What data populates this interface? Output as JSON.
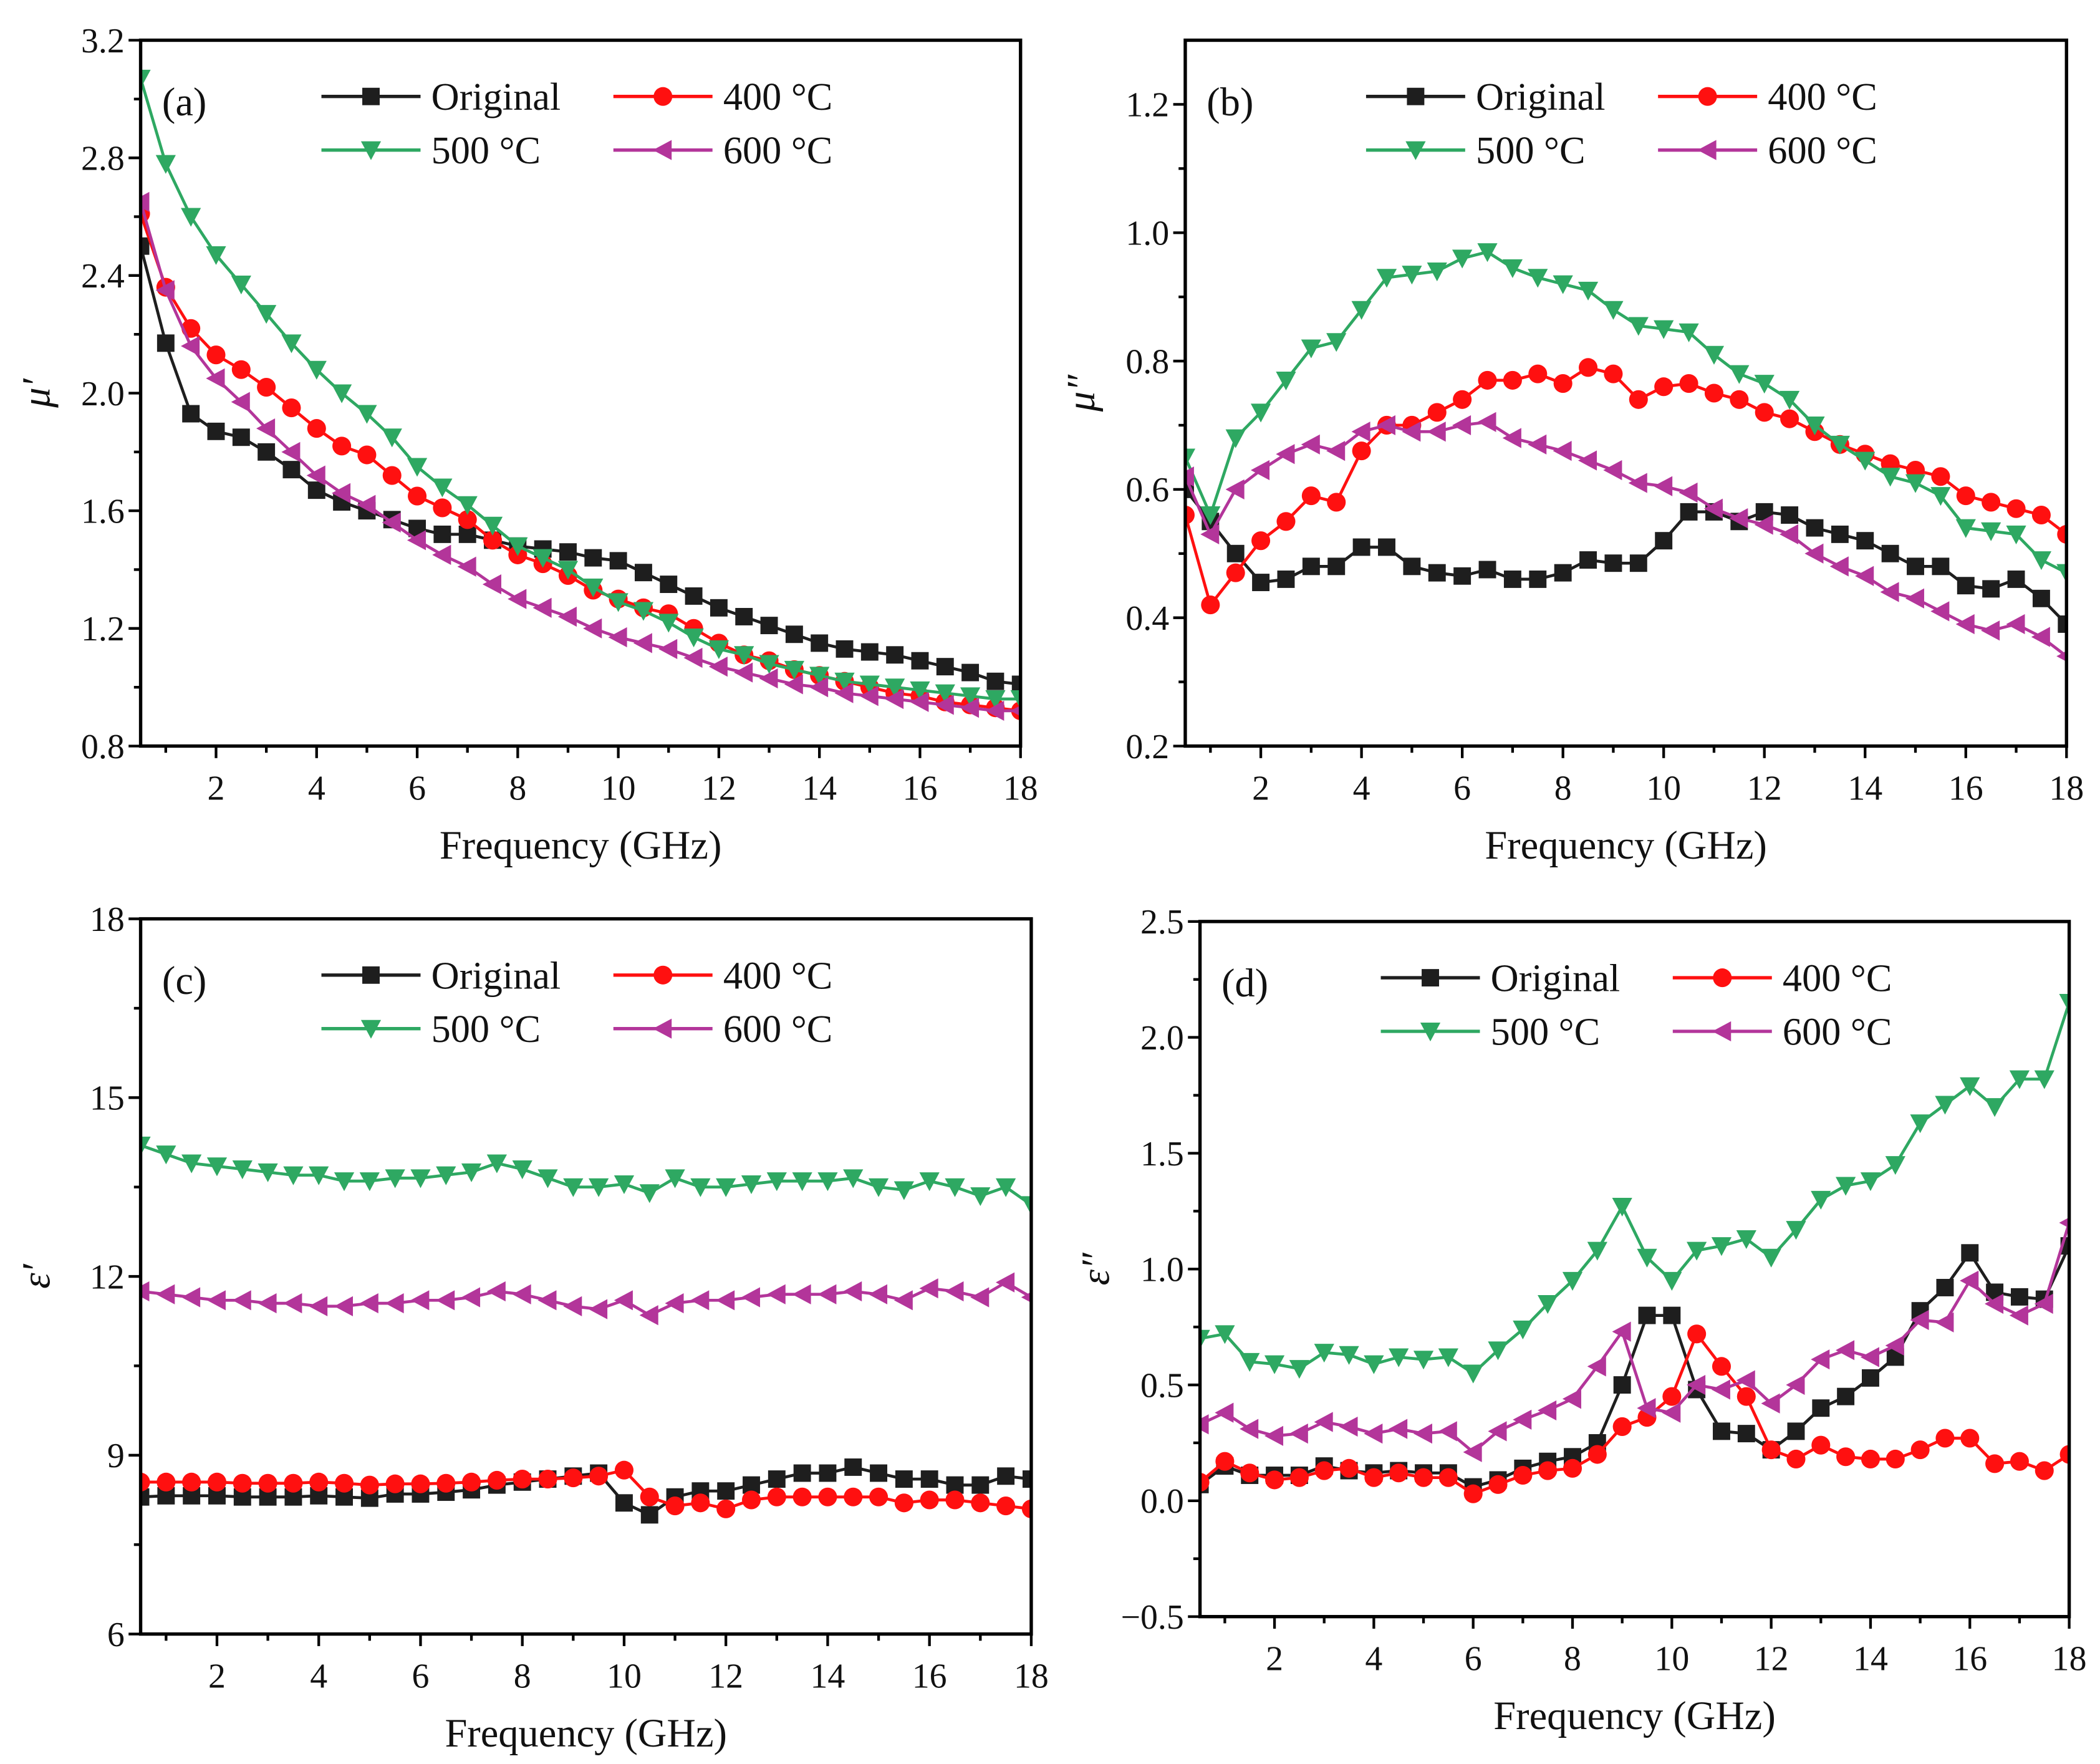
{
  "colors": {
    "Original": "#1e1e1e",
    "400 °C": "#ff1010",
    "500 °C": "#2ea862",
    "600 °C": "#b3359a"
  },
  "chart_data": [
    {
      "type": "line",
      "panel_label": "(a)",
      "xlabel": "Frequency (GHz)",
      "ylabel": "μ′",
      "xlim": [
        0.5,
        18
      ],
      "ylim": [
        0.8,
        3.2
      ],
      "xticks": [
        2,
        4,
        6,
        8,
        10,
        12,
        14,
        16,
        18
      ],
      "xtick_labels": [
        "2",
        "4",
        "6",
        "8",
        "10",
        "12",
        "14",
        "16",
        "18"
      ],
      "yticks": [
        0.8,
        1.2,
        1.6,
        2.0,
        2.4,
        2.8,
        3.2
      ],
      "ytick_labels": [
        "0.8",
        "1.2",
        "1.6",
        "2.0",
        "2.4",
        "2.8",
        "3.2"
      ],
      "legend_position": "top",
      "x": [
        0.5,
        1,
        1.5,
        2,
        2.5,
        3,
        3.5,
        4,
        4.5,
        5,
        5.5,
        6,
        6.5,
        7,
        7.5,
        8,
        8.5,
        9,
        9.5,
        10,
        10.5,
        11,
        11.5,
        12,
        12.5,
        13,
        13.5,
        14,
        14.5,
        15,
        15.5,
        16,
        16.5,
        17,
        17.5,
        18
      ],
      "series": [
        {
          "name": "Original",
          "marker": "square",
          "values": [
            2.5,
            2.17,
            1.93,
            1.87,
            1.85,
            1.8,
            1.74,
            1.67,
            1.63,
            1.6,
            1.57,
            1.54,
            1.52,
            1.52,
            1.5,
            1.48,
            1.47,
            1.46,
            1.44,
            1.43,
            1.39,
            1.35,
            1.31,
            1.27,
            1.24,
            1.21,
            1.18,
            1.15,
            1.13,
            1.12,
            1.11,
            1.09,
            1.07,
            1.05,
            1.02,
            1.01
          ]
        },
        {
          "name": "400 °C",
          "marker": "circle",
          "values": [
            2.61,
            2.36,
            2.22,
            2.13,
            2.08,
            2.02,
            1.95,
            1.88,
            1.82,
            1.79,
            1.72,
            1.65,
            1.61,
            1.57,
            1.5,
            1.45,
            1.42,
            1.38,
            1.33,
            1.3,
            1.27,
            1.25,
            1.2,
            1.15,
            1.11,
            1.09,
            1.06,
            1.04,
            1.02,
            1.0,
            0.98,
            0.97,
            0.95,
            0.94,
            0.93,
            0.92
          ]
        },
        {
          "name": "500 °C",
          "marker": "triangle-down",
          "values": [
            3.07,
            2.78,
            2.6,
            2.47,
            2.37,
            2.27,
            2.17,
            2.08,
            2.0,
            1.93,
            1.85,
            1.75,
            1.68,
            1.62,
            1.55,
            1.48,
            1.44,
            1.4,
            1.34,
            1.29,
            1.26,
            1.22,
            1.17,
            1.13,
            1.11,
            1.08,
            1.06,
            1.04,
            1.02,
            1.01,
            1.0,
            0.99,
            0.98,
            0.97,
            0.96,
            0.96
          ]
        },
        {
          "name": "600 °C",
          "marker": "triangle-left",
          "values": [
            2.65,
            2.35,
            2.16,
            2.05,
            1.97,
            1.88,
            1.8,
            1.72,
            1.66,
            1.62,
            1.56,
            1.5,
            1.45,
            1.41,
            1.35,
            1.3,
            1.27,
            1.24,
            1.2,
            1.17,
            1.15,
            1.13,
            1.1,
            1.07,
            1.05,
            1.03,
            1.01,
            1.0,
            0.98,
            0.97,
            0.96,
            0.95,
            0.94,
            0.93,
            0.92,
            0.92
          ]
        }
      ]
    },
    {
      "type": "line",
      "panel_label": "(b)",
      "xlabel": "Frequency (GHz)",
      "ylabel": "μ″",
      "xlim": [
        0.5,
        18
      ],
      "ylim": [
        0.2,
        1.3
      ],
      "xticks": [
        2,
        4,
        6,
        8,
        10,
        12,
        14,
        16,
        18
      ],
      "xtick_labels": [
        "2",
        "4",
        "6",
        "8",
        "10",
        "12",
        "14",
        "16",
        "18"
      ],
      "yticks": [
        0.2,
        0.4,
        0.6,
        0.8,
        1.0,
        1.2
      ],
      "ytick_labels": [
        "0.2",
        "0.4",
        "0.6",
        "0.8",
        "1.0",
        "1.2"
      ],
      "legend_position": "top",
      "x": [
        0.5,
        1,
        1.5,
        2,
        2.5,
        3,
        3.5,
        4,
        4.5,
        5,
        5.5,
        6,
        6.5,
        7,
        7.5,
        8,
        8.5,
        9,
        9.5,
        10,
        10.5,
        11,
        11.5,
        12,
        12.5,
        13,
        13.5,
        14,
        14.5,
        15,
        15.5,
        16,
        16.5,
        17,
        17.5,
        18
      ],
      "series": [
        {
          "name": "Original",
          "marker": "square",
          "values": [
            0.6,
            0.55,
            0.5,
            0.455,
            0.46,
            0.48,
            0.48,
            0.51,
            0.51,
            0.48,
            0.47,
            0.465,
            0.475,
            0.46,
            0.46,
            0.47,
            0.49,
            0.485,
            0.485,
            0.52,
            0.565,
            0.565,
            0.55,
            0.565,
            0.56,
            0.54,
            0.53,
            0.52,
            0.5,
            0.48,
            0.48,
            0.45,
            0.445,
            0.46,
            0.43,
            0.39
          ]
        },
        {
          "name": "400 °C",
          "marker": "circle",
          "values": [
            0.56,
            0.42,
            0.47,
            0.52,
            0.55,
            0.59,
            0.58,
            0.66,
            0.7,
            0.7,
            0.72,
            0.74,
            0.77,
            0.77,
            0.78,
            0.765,
            0.79,
            0.78,
            0.74,
            0.76,
            0.765,
            0.75,
            0.74,
            0.72,
            0.71,
            0.69,
            0.67,
            0.655,
            0.64,
            0.63,
            0.62,
            0.59,
            0.58,
            0.57,
            0.56,
            0.53
          ]
        },
        {
          "name": "500 °C",
          "marker": "triangle-down",
          "values": [
            0.65,
            0.56,
            0.68,
            0.72,
            0.77,
            0.82,
            0.83,
            0.88,
            0.93,
            0.935,
            0.94,
            0.96,
            0.97,
            0.945,
            0.93,
            0.92,
            0.91,
            0.88,
            0.855,
            0.85,
            0.845,
            0.81,
            0.78,
            0.765,
            0.74,
            0.7,
            0.67,
            0.645,
            0.62,
            0.61,
            0.59,
            0.54,
            0.535,
            0.53,
            0.49,
            0.47
          ]
        },
        {
          "name": "600 °C",
          "marker": "triangle-left",
          "values": [
            0.62,
            0.53,
            0.6,
            0.63,
            0.655,
            0.67,
            0.66,
            0.69,
            0.7,
            0.69,
            0.69,
            0.7,
            0.705,
            0.68,
            0.67,
            0.66,
            0.645,
            0.63,
            0.61,
            0.605,
            0.595,
            0.57,
            0.555,
            0.545,
            0.53,
            0.5,
            0.48,
            0.465,
            0.44,
            0.43,
            0.41,
            0.39,
            0.38,
            0.39,
            0.37,
            0.34
          ]
        }
      ]
    },
    {
      "type": "line",
      "panel_label": "(c)",
      "xlabel": "Frequency (GHz)",
      "ylabel": "ε′",
      "xlim": [
        0.5,
        18
      ],
      "ylim": [
        6,
        18
      ],
      "xticks": [
        2,
        4,
        6,
        8,
        10,
        12,
        14,
        16,
        18
      ],
      "xtick_labels": [
        "2",
        "4",
        "6",
        "8",
        "10",
        "12",
        "14",
        "16",
        "18"
      ],
      "yticks": [
        6,
        9,
        12,
        15,
        18
      ],
      "ytick_labels": [
        "6",
        "9",
        "12",
        "15",
        "18"
      ],
      "legend_position": "top",
      "x": [
        0.5,
        1,
        1.5,
        2,
        2.5,
        3,
        3.5,
        4,
        4.5,
        5,
        5.5,
        6,
        6.5,
        7,
        7.5,
        8,
        8.5,
        9,
        9.5,
        10,
        10.5,
        11,
        11.5,
        12,
        12.5,
        13,
        13.5,
        14,
        14.5,
        15,
        15.5,
        16,
        16.5,
        17,
        17.5,
        18
      ],
      "series": [
        {
          "name": "Original",
          "marker": "square",
          "values": [
            8.3,
            8.32,
            8.32,
            8.32,
            8.3,
            8.3,
            8.3,
            8.32,
            8.3,
            8.28,
            8.35,
            8.35,
            8.38,
            8.42,
            8.5,
            8.55,
            8.6,
            8.65,
            8.7,
            8.2,
            8.0,
            8.3,
            8.4,
            8.4,
            8.5,
            8.6,
            8.7,
            8.7,
            8.8,
            8.7,
            8.6,
            8.6,
            8.5,
            8.5,
            8.65,
            8.6
          ]
        },
        {
          "name": "400 °C",
          "marker": "circle",
          "values": [
            8.55,
            8.55,
            8.55,
            8.55,
            8.53,
            8.53,
            8.53,
            8.55,
            8.53,
            8.5,
            8.52,
            8.52,
            8.53,
            8.55,
            8.58,
            8.6,
            8.6,
            8.62,
            8.65,
            8.75,
            8.3,
            8.15,
            8.2,
            8.1,
            8.25,
            8.3,
            8.3,
            8.3,
            8.3,
            8.3,
            8.2,
            8.25,
            8.25,
            8.2,
            8.15,
            8.1
          ]
        },
        {
          "name": "500 °C",
          "marker": "triangle-down",
          "values": [
            14.2,
            14.05,
            13.9,
            13.85,
            13.8,
            13.75,
            13.7,
            13.7,
            13.6,
            13.6,
            13.65,
            13.65,
            13.7,
            13.75,
            13.9,
            13.8,
            13.65,
            13.5,
            13.5,
            13.55,
            13.4,
            13.65,
            13.5,
            13.5,
            13.55,
            13.6,
            13.6,
            13.6,
            13.65,
            13.5,
            13.45,
            13.6,
            13.5,
            13.35,
            13.5,
            13.2
          ]
        },
        {
          "name": "600 °C",
          "marker": "triangle-left",
          "values": [
            11.75,
            11.7,
            11.65,
            11.6,
            11.6,
            11.55,
            11.55,
            11.5,
            11.5,
            11.55,
            11.55,
            11.6,
            11.6,
            11.65,
            11.75,
            11.7,
            11.6,
            11.5,
            11.45,
            11.6,
            11.35,
            11.55,
            11.6,
            11.6,
            11.65,
            11.7,
            11.7,
            11.7,
            11.75,
            11.7,
            11.6,
            11.8,
            11.75,
            11.65,
            11.9,
            11.65
          ]
        }
      ]
    },
    {
      "type": "line",
      "panel_label": "(d)",
      "xlabel": "Frequency (GHz)",
      "ylabel": "ε″",
      "xlim": [
        0.5,
        18
      ],
      "ylim": [
        -0.5,
        2.5
      ],
      "xticks": [
        2,
        4,
        6,
        8,
        10,
        12,
        14,
        16,
        18
      ],
      "xtick_labels": [
        "2",
        "4",
        "6",
        "8",
        "10",
        "12",
        "14",
        "16",
        "18"
      ],
      "yticks": [
        -0.5,
        0.0,
        0.5,
        1.0,
        1.5,
        2.0,
        2.5
      ],
      "ytick_labels": [
        "−0.5",
        "0.0",
        "0.5",
        "1.0",
        "1.5",
        "2.0",
        "2.5"
      ],
      "legend_position": "top",
      "x": [
        0.5,
        1,
        1.5,
        2,
        2.5,
        3,
        3.5,
        4,
        4.5,
        5,
        5.5,
        6,
        6.5,
        7,
        7.5,
        8,
        8.5,
        9,
        9.5,
        10,
        10.5,
        11,
        11.5,
        12,
        12.5,
        13,
        13.5,
        14,
        14.5,
        15,
        15.5,
        16,
        16.5,
        17,
        17.5,
        18
      ],
      "series": [
        {
          "name": "Original",
          "marker": "square",
          "values": [
            0.07,
            0.15,
            0.11,
            0.11,
            0.11,
            0.15,
            0.13,
            0.12,
            0.13,
            0.12,
            0.12,
            0.06,
            0.09,
            0.14,
            0.17,
            0.19,
            0.25,
            0.5,
            0.8,
            0.8,
            0.48,
            0.3,
            0.29,
            0.22,
            0.3,
            0.4,
            0.45,
            0.53,
            0.62,
            0.82,
            0.92,
            1.07,
            0.9,
            0.88,
            0.87,
            1.1
          ]
        },
        {
          "name": "400 °C",
          "marker": "circle",
          "values": [
            0.08,
            0.17,
            0.12,
            0.09,
            0.1,
            0.13,
            0.14,
            0.1,
            0.12,
            0.1,
            0.1,
            0.03,
            0.07,
            0.11,
            0.13,
            0.14,
            0.2,
            0.32,
            0.36,
            0.45,
            0.72,
            0.58,
            0.45,
            0.22,
            0.18,
            0.24,
            0.19,
            0.18,
            0.18,
            0.22,
            0.27,
            0.27,
            0.16,
            0.17,
            0.13,
            0.2
          ]
        },
        {
          "name": "500 °C",
          "marker": "triangle-down",
          "values": [
            0.7,
            0.72,
            0.6,
            0.59,
            0.57,
            0.64,
            0.63,
            0.59,
            0.62,
            0.61,
            0.62,
            0.55,
            0.65,
            0.74,
            0.85,
            0.95,
            1.08,
            1.27,
            1.05,
            0.95,
            1.08,
            1.1,
            1.13,
            1.05,
            1.17,
            1.3,
            1.36,
            1.38,
            1.45,
            1.63,
            1.71,
            1.79,
            1.7,
            1.82,
            1.82,
            2.15
          ]
        },
        {
          "name": "600 °C",
          "marker": "triangle-left",
          "values": [
            0.33,
            0.38,
            0.31,
            0.28,
            0.29,
            0.34,
            0.32,
            0.29,
            0.31,
            0.29,
            0.3,
            0.21,
            0.3,
            0.35,
            0.39,
            0.44,
            0.58,
            0.73,
            0.4,
            0.38,
            0.5,
            0.48,
            0.52,
            0.42,
            0.5,
            0.61,
            0.65,
            0.62,
            0.67,
            0.78,
            0.77,
            0.95,
            0.85,
            0.8,
            0.85,
            1.2
          ]
        }
      ]
    }
  ]
}
